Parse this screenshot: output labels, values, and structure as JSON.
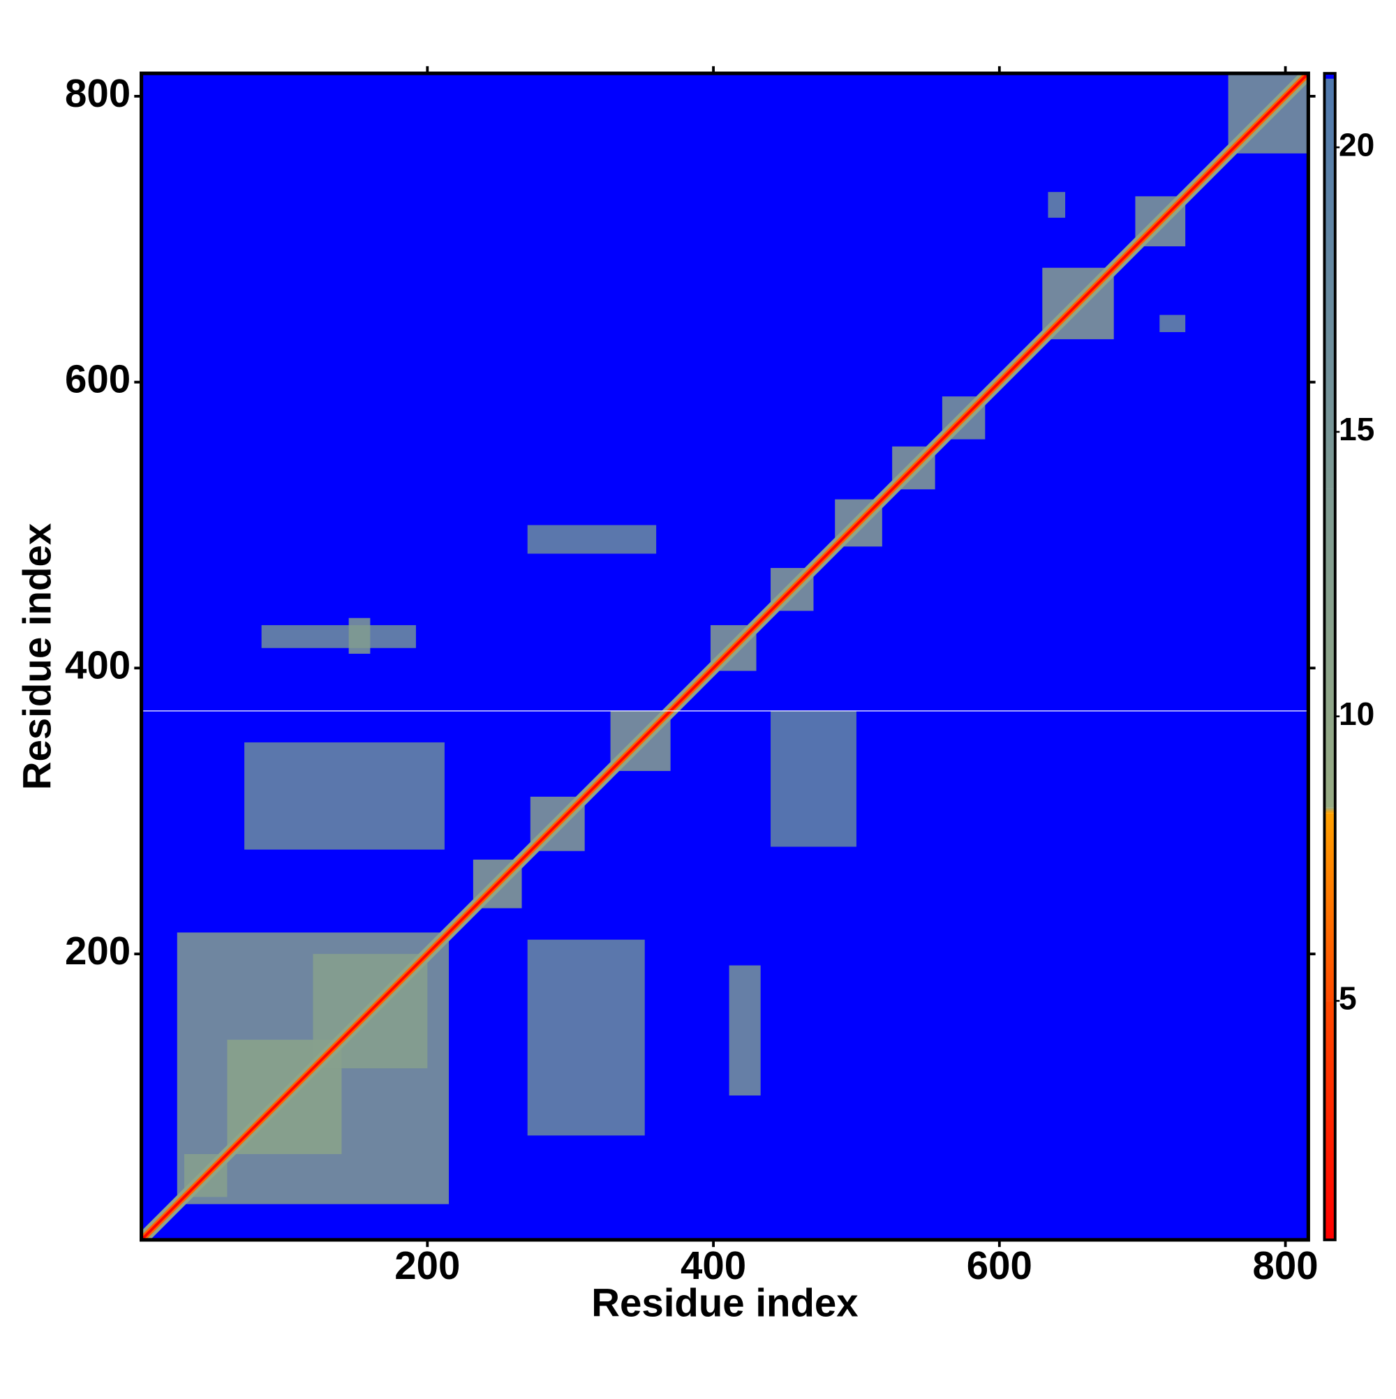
{
  "chart_data": {
    "type": "heatmap",
    "xlabel": "Residue index",
    "ylabel": "Residue index",
    "xlim": [
      0,
      816
    ],
    "ylim": [
      0,
      816
    ],
    "xticks": [
      200,
      400,
      600,
      800
    ],
    "yticks": [
      200,
      400,
      600,
      800
    ],
    "zlim": [
      0.8,
      21.3
    ],
    "zticks": [
      5,
      10,
      15,
      20
    ],
    "background_color": "#0000ff",
    "colormap": [
      {
        "value": 0.8,
        "color": "#ff0000"
      },
      {
        "value": 5,
        "color": "#ff4a00"
      },
      {
        "value": 8.3,
        "color": "#ffa000"
      },
      {
        "value": 8.4,
        "color": "#97ab83"
      },
      {
        "value": 14,
        "color": "#7e9a92"
      },
      {
        "value": 21.3,
        "color": "#4f78ae"
      }
    ],
    "diagonal_values": [
      10,
      6,
      1
    ],
    "missing_rows": [
      370
    ],
    "blocks": [
      {
        "x": [
          25,
          215
        ],
        "y": [
          25,
          215
        ],
        "value": 13
      },
      {
        "x": [
          60,
          140
        ],
        "y": [
          60,
          140
        ],
        "value": 11
      },
      {
        "x": [
          120,
          200
        ],
        "y": [
          120,
          200
        ],
        "value": 12
      },
      {
        "x": [
          270,
          352
        ],
        "y": [
          73,
          210
        ],
        "value": 17
      },
      {
        "x": [
          411,
          433
        ],
        "y": [
          101,
          192
        ],
        "value": 15
      },
      {
        "x": [
          72,
          212
        ],
        "y": [
          273,
          348
        ],
        "value": 17
      },
      {
        "x": [
          84,
          192
        ],
        "y": [
          414,
          430
        ],
        "value": 16
      },
      {
        "x": [
          145,
          160
        ],
        "y": [
          410,
          435
        ],
        "value": 13
      },
      {
        "x": [
          270,
          360
        ],
        "y": [
          480,
          500
        ],
        "value": 17
      },
      {
        "x": [
          440,
          500
        ],
        "y": [
          275,
          370
        ],
        "value": 18
      },
      {
        "x": [
          232,
          266
        ],
        "y": [
          232,
          266
        ],
        "value": 11
      },
      {
        "x": [
          272,
          310
        ],
        "y": [
          272,
          310
        ],
        "value": 12
      },
      {
        "x": [
          328,
          370
        ],
        "y": [
          328,
          370
        ],
        "value": 12
      },
      {
        "x": [
          398,
          430
        ],
        "y": [
          398,
          430
        ],
        "value": 12
      },
      {
        "x": [
          440,
          470
        ],
        "y": [
          440,
          470
        ],
        "value": 12
      },
      {
        "x": [
          485,
          518
        ],
        "y": [
          485,
          518
        ],
        "value": 12
      },
      {
        "x": [
          525,
          555
        ],
        "y": [
          525,
          555
        ],
        "value": 12
      },
      {
        "x": [
          560,
          590
        ],
        "y": [
          560,
          590
        ],
        "value": 14
      },
      {
        "x": [
          630,
          680
        ],
        "y": [
          630,
          680
        ],
        "value": 12
      },
      {
        "x": [
          695,
          730
        ],
        "y": [
          695,
          730
        ],
        "value": 13
      },
      {
        "x": [
          760,
          816
        ],
        "y": [
          760,
          816
        ],
        "value": 14
      },
      {
        "x": [
          634,
          646
        ],
        "y": [
          715,
          733
        ],
        "value": 17
      },
      {
        "x": [
          712,
          730
        ],
        "y": [
          635,
          647
        ],
        "value": 17
      },
      {
        "x": [
          30,
          60
        ],
        "y": [
          30,
          60
        ],
        "value": 12
      }
    ]
  }
}
